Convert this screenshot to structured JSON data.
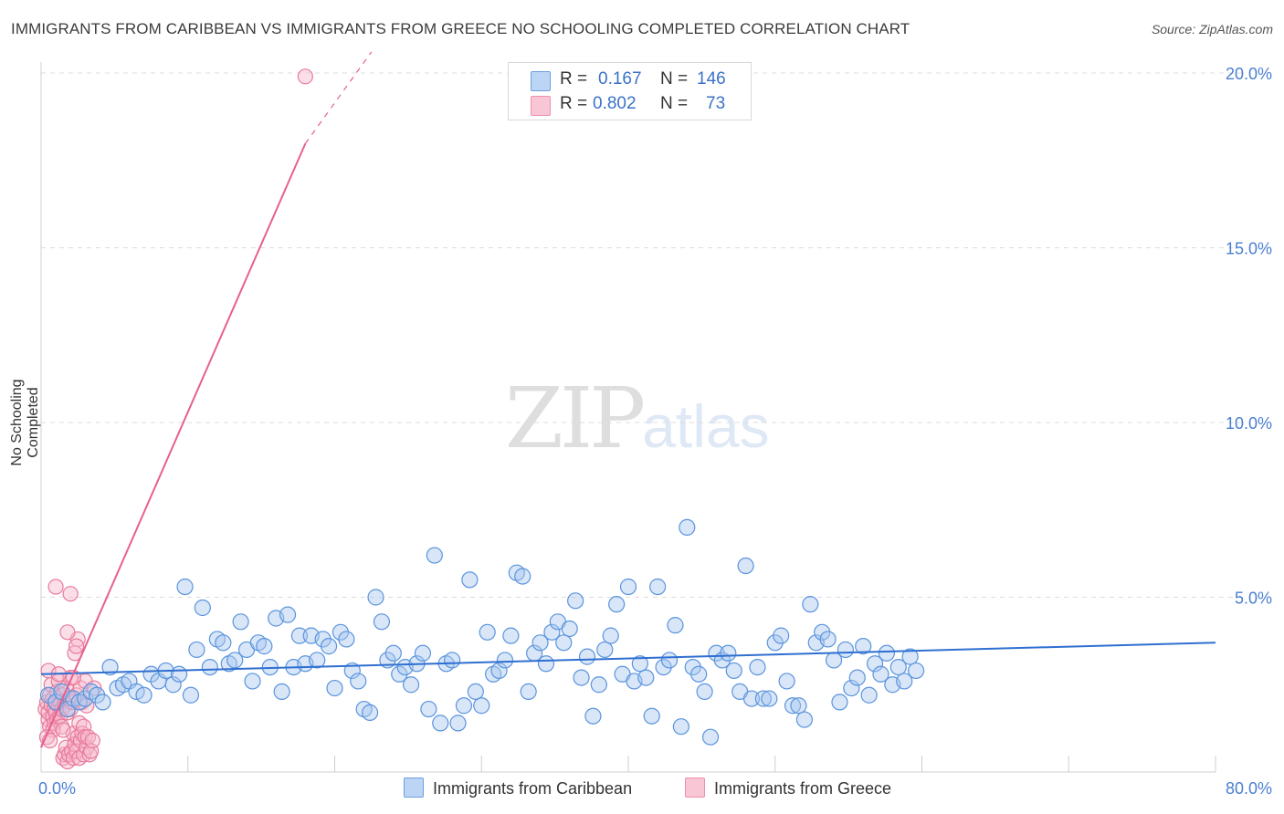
{
  "title": "IMMIGRANTS FROM CARIBBEAN VS IMMIGRANTS FROM GREECE NO SCHOOLING COMPLETED CORRELATION CHART",
  "source": "Source: ZipAtlas.com",
  "watermark": {
    "zip": "ZIP",
    "atlas": "atlas"
  },
  "legend": {
    "series1": {
      "r_label": "R =",
      "r_value": "0.167",
      "n_label": "N =",
      "n_value": "146"
    },
    "series2": {
      "r_label": "R =",
      "r_value": "0.802",
      "n_label": "N =",
      "n_value": "73"
    }
  },
  "bottom_legend": {
    "series1": "Immigrants from Caribbean",
    "series2": "Immigrants from Greece"
  },
  "colors": {
    "caribbean_fill": "#a8c8f0",
    "caribbean_stroke": "#5a94dd",
    "caribbean_line": "#2f6fd0",
    "greece_fill": "#f7b9cb",
    "greece_stroke": "#e87a9b",
    "greece_line": "#e8608c"
  },
  "chart_data": {
    "type": "scatter",
    "title": "IMMIGRANTS FROM CARIBBEAN VS IMMIGRANTS FROM GREECE NO SCHOOLING COMPLETED CORRELATION CHART",
    "xlabel": "",
    "ylabel": "No Schooling Completed",
    "xlim": [
      0,
      80
    ],
    "ylim": [
      0,
      20
    ],
    "x_tick_labels": [
      "0.0%",
      "80.0%"
    ],
    "y_ticks": [
      5,
      10,
      15,
      20
    ],
    "y_tick_labels": [
      "5.0%",
      "10.0%",
      "15.0%",
      "20.0%"
    ],
    "grid": true,
    "series": [
      {
        "name": "Immigrants from Caribbean",
        "R": 0.167,
        "N": 146,
        "trend": {
          "x0": 0,
          "y0": 2.8,
          "x1": 80,
          "y1": 3.7
        },
        "points": [
          [
            0.5,
            2.2
          ],
          [
            1,
            2.0
          ],
          [
            1.4,
            2.3
          ],
          [
            1.8,
            1.8
          ],
          [
            2.2,
            2.1
          ],
          [
            2.6,
            2.0
          ],
          [
            3,
            2.1
          ],
          [
            3.4,
            2.3
          ],
          [
            3.8,
            2.2
          ],
          [
            4.2,
            2.0
          ],
          [
            4.7,
            3.0
          ],
          [
            5.2,
            2.4
          ],
          [
            5.6,
            2.5
          ],
          [
            6,
            2.6
          ],
          [
            6.5,
            2.3
          ],
          [
            7,
            2.2
          ],
          [
            7.5,
            2.8
          ],
          [
            8,
            2.6
          ],
          [
            8.5,
            2.9
          ],
          [
            9,
            2.5
          ],
          [
            9.4,
            2.8
          ],
          [
            9.8,
            5.3
          ],
          [
            10.2,
            2.2
          ],
          [
            10.6,
            3.5
          ],
          [
            11,
            4.7
          ],
          [
            11.5,
            3.0
          ],
          [
            12,
            3.8
          ],
          [
            12.4,
            3.7
          ],
          [
            12.8,
            3.1
          ],
          [
            13.2,
            3.2
          ],
          [
            13.6,
            4.3
          ],
          [
            14,
            3.5
          ],
          [
            14.4,
            2.6
          ],
          [
            14.8,
            3.7
          ],
          [
            15.2,
            3.6
          ],
          [
            15.6,
            3.0
          ],
          [
            16,
            4.4
          ],
          [
            16.4,
            2.3
          ],
          [
            16.8,
            4.5
          ],
          [
            17.2,
            3.0
          ],
          [
            17.6,
            3.9
          ],
          [
            18,
            3.1
          ],
          [
            18.4,
            3.9
          ],
          [
            18.8,
            3.2
          ],
          [
            19.2,
            3.8
          ],
          [
            19.6,
            3.6
          ],
          [
            20,
            2.4
          ],
          [
            20.4,
            4.0
          ],
          [
            20.8,
            3.8
          ],
          [
            21.2,
            2.9
          ],
          [
            21.6,
            2.6
          ],
          [
            22,
            1.8
          ],
          [
            22.4,
            1.7
          ],
          [
            22.8,
            5.0
          ],
          [
            23.2,
            4.3
          ],
          [
            23.6,
            3.2
          ],
          [
            24,
            3.4
          ],
          [
            24.4,
            2.8
          ],
          [
            24.8,
            3.0
          ],
          [
            25.2,
            2.5
          ],
          [
            25.6,
            3.1
          ],
          [
            26,
            3.4
          ],
          [
            26.4,
            1.8
          ],
          [
            26.8,
            6.2
          ],
          [
            27.2,
            1.4
          ],
          [
            27.6,
            3.1
          ],
          [
            28,
            3.2
          ],
          [
            28.4,
            1.4
          ],
          [
            28.8,
            1.9
          ],
          [
            29.2,
            5.5
          ],
          [
            29.6,
            2.3
          ],
          [
            30,
            1.9
          ],
          [
            30.4,
            4.0
          ],
          [
            30.8,
            2.8
          ],
          [
            31.2,
            2.9
          ],
          [
            31.6,
            3.2
          ],
          [
            32,
            3.9
          ],
          [
            32.4,
            5.7
          ],
          [
            32.8,
            5.6
          ],
          [
            33.2,
            2.3
          ],
          [
            33.6,
            3.4
          ],
          [
            34,
            3.7
          ],
          [
            34.4,
            3.1
          ],
          [
            34.8,
            4.0
          ],
          [
            35.2,
            4.3
          ],
          [
            35.6,
            3.7
          ],
          [
            36,
            4.1
          ],
          [
            36.4,
            4.9
          ],
          [
            36.8,
            2.7
          ],
          [
            37.2,
            3.3
          ],
          [
            37.6,
            1.6
          ],
          [
            38,
            2.5
          ],
          [
            38.4,
            3.5
          ],
          [
            38.8,
            3.9
          ],
          [
            39.2,
            4.8
          ],
          [
            39.6,
            2.8
          ],
          [
            40,
            5.3
          ],
          [
            40.4,
            2.6
          ],
          [
            40.8,
            3.1
          ],
          [
            41.2,
            2.7
          ],
          [
            41.6,
            1.6
          ],
          [
            42,
            5.3
          ],
          [
            42.4,
            3.0
          ],
          [
            42.8,
            3.2
          ],
          [
            43.2,
            4.2
          ],
          [
            43.6,
            1.3
          ],
          [
            44,
            7.0
          ],
          [
            44.4,
            3.0
          ],
          [
            44.8,
            2.8
          ],
          [
            45.2,
            2.3
          ],
          [
            45.6,
            1.0
          ],
          [
            46,
            3.4
          ],
          [
            46.4,
            3.2
          ],
          [
            46.8,
            3.4
          ],
          [
            47.2,
            2.9
          ],
          [
            47.6,
            2.3
          ],
          [
            48,
            5.9
          ],
          [
            48.4,
            2.1
          ],
          [
            48.8,
            3.0
          ],
          [
            49.2,
            2.1
          ],
          [
            49.6,
            2.1
          ],
          [
            50,
            3.7
          ],
          [
            50.4,
            3.9
          ],
          [
            50.8,
            2.6
          ],
          [
            51.2,
            1.9
          ],
          [
            51.6,
            1.9
          ],
          [
            52,
            1.5
          ],
          [
            52.4,
            4.8
          ],
          [
            52.8,
            3.7
          ],
          [
            53.2,
            4.0
          ],
          [
            53.6,
            3.8
          ],
          [
            54,
            3.2
          ],
          [
            54.4,
            2.0
          ],
          [
            54.8,
            3.5
          ],
          [
            55.2,
            2.4
          ],
          [
            55.6,
            2.7
          ],
          [
            56,
            3.6
          ],
          [
            56.4,
            2.2
          ],
          [
            56.8,
            3.1
          ],
          [
            57.2,
            2.8
          ],
          [
            57.6,
            3.4
          ],
          [
            58,
            2.5
          ],
          [
            58.4,
            3.0
          ],
          [
            58.8,
            2.6
          ],
          [
            59.2,
            3.3
          ],
          [
            59.6,
            2.9
          ]
        ]
      },
      {
        "name": "Immigrants from Greece",
        "R": 0.802,
        "N": 73,
        "trend": {
          "x0": 0,
          "y0": 0.7,
          "x1": 20,
          "y1": 19.9,
          "solid_until_x": 20
        },
        "points": [
          [
            0.3,
            1.8
          ],
          [
            0.4,
            2.0
          ],
          [
            0.5,
            1.5
          ],
          [
            0.5,
            1.7
          ],
          [
            0.6,
            2.2
          ],
          [
            0.6,
            1.3
          ],
          [
            0.7,
            1.9
          ],
          [
            0.7,
            2.5
          ],
          [
            0.8,
            1.6
          ],
          [
            0.8,
            2.1
          ],
          [
            0.9,
            1.8
          ],
          [
            0.9,
            1.4
          ],
          [
            1.0,
            2.0
          ],
          [
            1.0,
            1.7
          ],
          [
            1.1,
            2.3
          ],
          [
            1.1,
            1.5
          ],
          [
            1.2,
            1.9
          ],
          [
            1.2,
            2.6
          ],
          [
            1.3,
            1.6
          ],
          [
            1.3,
            2.0
          ],
          [
            1.4,
            1.8
          ],
          [
            1.4,
            1.3
          ],
          [
            1.5,
            2.2
          ],
          [
            1.5,
            0.4
          ],
          [
            1.6,
            1.9
          ],
          [
            1.6,
            0.5
          ],
          [
            1.7,
            2.4
          ],
          [
            1.7,
            0.7
          ],
          [
            1.8,
            1.7
          ],
          [
            1.8,
            0.3
          ],
          [
            1.9,
            2.1
          ],
          [
            1.9,
            0.5
          ],
          [
            2.0,
            1.8
          ],
          [
            2.0,
            2.7
          ],
          [
            2.1,
            0.6
          ],
          [
            2.1,
            2.0
          ],
          [
            2.2,
            0.4
          ],
          [
            2.2,
            1.1
          ],
          [
            2.3,
            3.4
          ],
          [
            2.3,
            0.8
          ],
          [
            2.4,
            2.2
          ],
          [
            2.4,
            0.6
          ],
          [
            2.5,
            1.0
          ],
          [
            2.5,
            3.8
          ],
          [
            2.6,
            0.4
          ],
          [
            2.6,
            1.4
          ],
          [
            2.7,
            2.4
          ],
          [
            2.7,
            0.9
          ],
          [
            2.8,
            1.1
          ],
          [
            2.8,
            2.0
          ],
          [
            2.9,
            1.3
          ],
          [
            2.9,
            0.5
          ],
          [
            3.0,
            1.0
          ],
          [
            3.0,
            2.6
          ],
          [
            3.1,
            0.7
          ],
          [
            3.1,
            1.9
          ],
          [
            1.0,
            5.3
          ],
          [
            2.0,
            5.1
          ],
          [
            1.8,
            4.0
          ],
          [
            2.4,
            3.6
          ],
          [
            0.5,
            2.9
          ],
          [
            1.2,
            2.8
          ],
          [
            2.2,
            2.7
          ],
          [
            0.8,
            1.2
          ],
          [
            1.5,
            1.2
          ],
          [
            3.2,
            1.0
          ],
          [
            3.3,
            0.5
          ],
          [
            3.4,
            0.6
          ],
          [
            3.5,
            0.9
          ],
          [
            3.6,
            2.4
          ],
          [
            0.4,
            1.0
          ],
          [
            0.6,
            0.9
          ],
          [
            18,
            19.9
          ]
        ]
      }
    ]
  }
}
